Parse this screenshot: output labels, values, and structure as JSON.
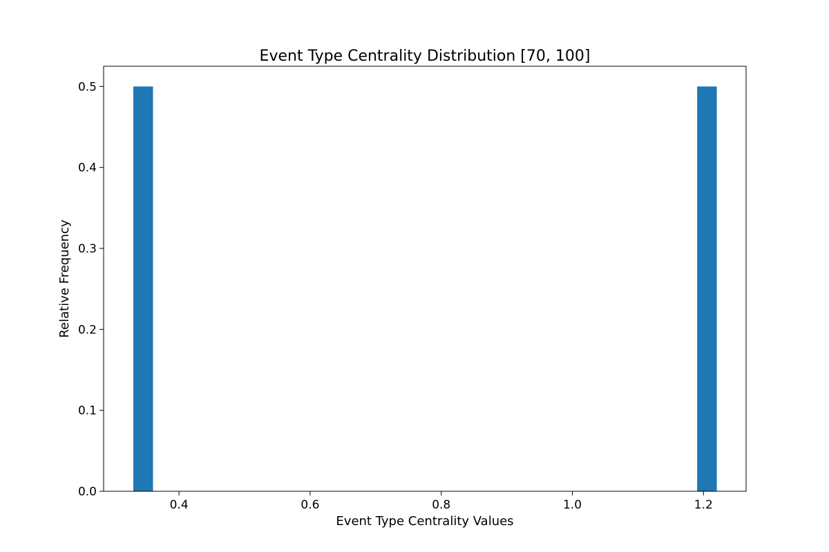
{
  "chart_data": {
    "type": "bar",
    "title": "Event Type Centrality Distribution [70, 100]",
    "xlabel": "Event Type Centrality Values",
    "ylabel": "Relative Frequency",
    "xlim": [
      0.285,
      1.265
    ],
    "ylim": [
      0,
      0.525
    ],
    "x_ticks": [
      0.4,
      0.6,
      0.8,
      1.0,
      1.2
    ],
    "x_tick_labels": [
      "0.4",
      "0.6",
      "0.8",
      "1.0",
      "1.2"
    ],
    "y_ticks": [
      0.0,
      0.1,
      0.2,
      0.3,
      0.4,
      0.5
    ],
    "y_tick_labels": [
      "0.0",
      "0.1",
      "0.2",
      "0.3",
      "0.4",
      "0.5"
    ],
    "grid": false,
    "legend": "none",
    "bin_width": 0.03,
    "series": [
      {
        "color": "#1f77b4",
        "bins": [
          {
            "x_start": 0.3303,
            "x_end": 0.3603,
            "value": 0.5
          },
          {
            "x_start": 1.1903,
            "x_end": 1.2203,
            "value": 0.5
          }
        ]
      }
    ]
  }
}
